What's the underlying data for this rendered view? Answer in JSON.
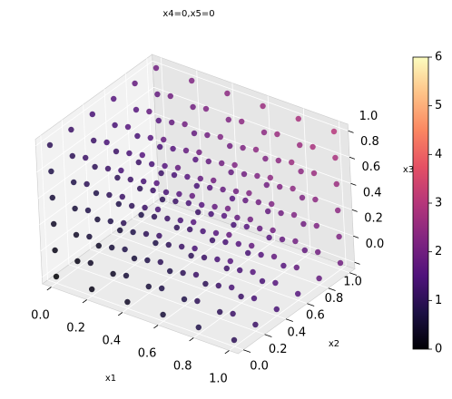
{
  "chart_data": {
    "type": "scatter3d",
    "title": "x4=0,x5=0",
    "xlabel": "x1",
    "ylabel": "x2",
    "zlabel": "x3",
    "x1": [
      0,
      0.2,
      0.4,
      0.6,
      0.8,
      1
    ],
    "x2": [
      0,
      0.2,
      0.4,
      0.6,
      0.8,
      1
    ],
    "x3": [
      0,
      0.2,
      0.4,
      0.6,
      0.8,
      1
    ],
    "values": [
      [
        [
          0,
          0.2,
          0.4,
          0.6,
          0.8,
          1
        ],
        [
          0.2,
          0.4,
          0.6,
          0.8,
          1,
          1.2
        ],
        [
          0.4,
          0.6,
          0.8,
          1,
          1.2,
          1.4
        ],
        [
          0.6,
          0.8,
          1,
          1.2,
          1.4,
          1.6
        ],
        [
          0.8,
          1,
          1.2,
          1.4,
          1.6,
          1.8
        ],
        [
          1,
          1.2,
          1.4,
          1.6,
          1.8,
          2
        ]
      ],
      [
        [
          0.2,
          0.4,
          0.6,
          0.8,
          1,
          1.2
        ],
        [
          0.4,
          0.6,
          0.8,
          1,
          1.2,
          1.4
        ],
        [
          0.6,
          0.8,
          1,
          1.2,
          1.4,
          1.6
        ],
        [
          0.8,
          1,
          1.2,
          1.4,
          1.6,
          1.8
        ],
        [
          1,
          1.2,
          1.4,
          1.6,
          1.8,
          2
        ],
        [
          1.2,
          1.4,
          1.6,
          1.8,
          2,
          2.2
        ]
      ],
      [
        [
          0.4,
          0.6,
          0.8,
          1,
          1.2,
          1.4
        ],
        [
          0.6,
          0.8,
          1,
          1.2,
          1.4,
          1.6
        ],
        [
          0.8,
          1,
          1.2,
          1.4,
          1.6,
          1.8
        ],
        [
          1,
          1.2,
          1.4,
          1.6,
          1.8,
          2
        ],
        [
          1.2,
          1.4,
          1.6,
          1.8,
          2,
          2.2
        ],
        [
          1.4,
          1.6,
          1.8,
          2,
          2.2,
          2.4
        ]
      ],
      [
        [
          0.6,
          0.8,
          1,
          1.2,
          1.4,
          1.6
        ],
        [
          0.8,
          1,
          1.2,
          1.4,
          1.6,
          1.8
        ],
        [
          1,
          1.2,
          1.4,
          1.6,
          1.8,
          2
        ],
        [
          1.2,
          1.4,
          1.6,
          1.8,
          2,
          2.2
        ],
        [
          1.4,
          1.6,
          1.8,
          2,
          2.2,
          2.4
        ],
        [
          1.6,
          1.8,
          2,
          2.2,
          2.4,
          2.6
        ]
      ],
      [
        [
          0.8,
          1,
          1.2,
          1.4,
          1.6,
          1.8
        ],
        [
          1,
          1.2,
          1.4,
          1.6,
          1.8,
          2
        ],
        [
          1.2,
          1.4,
          1.6,
          1.8,
          2,
          2.2
        ],
        [
          1.4,
          1.6,
          1.8,
          2,
          2.2,
          2.4
        ],
        [
          1.6,
          1.8,
          2,
          2.2,
          2.4,
          2.6
        ],
        [
          1.8,
          2,
          2.2,
          2.4,
          2.6,
          2.8
        ]
      ],
      [
        [
          1,
          1.2,
          1.4,
          1.6,
          1.8,
          2
        ],
        [
          1.2,
          1.4,
          1.6,
          1.8,
          2,
          2.2
        ],
        [
          1.4,
          1.6,
          1.8,
          2,
          2.2,
          2.4
        ],
        [
          1.6,
          1.8,
          2,
          2.2,
          2.4,
          2.6
        ],
        [
          1.8,
          2,
          2.2,
          2.4,
          2.6,
          2.8
        ],
        [
          2,
          2.2,
          2.4,
          2.6,
          2.8,
          3
        ]
      ]
    ],
    "xlim": [
      -0.05,
      1.05
    ],
    "ylim": [
      -0.05,
      1.05
    ],
    "zlim": [
      -0.05,
      1.05
    ],
    "xticks": [
      {
        "value": 0,
        "label": "0.0"
      },
      0.2,
      0.4,
      0.6,
      0.8,
      {
        "value": 1,
        "label": "1.0"
      }
    ],
    "yticks": [
      {
        "value": 0,
        "label": "0.0"
      },
      0.2,
      0.4,
      0.6,
      0.8,
      {
        "value": 1,
        "label": "1.0"
      }
    ],
    "zticks": [
      {
        "value": 0,
        "label": "0.0"
      },
      0.2,
      0.4,
      0.6,
      0.8,
      {
        "value": 1,
        "label": "1.0"
      }
    ],
    "colormap": "magma",
    "clim": [
      0,
      6
    ],
    "cticks": [
      0,
      1,
      2,
      3,
      4,
      5,
      6
    ],
    "grid": true
  }
}
